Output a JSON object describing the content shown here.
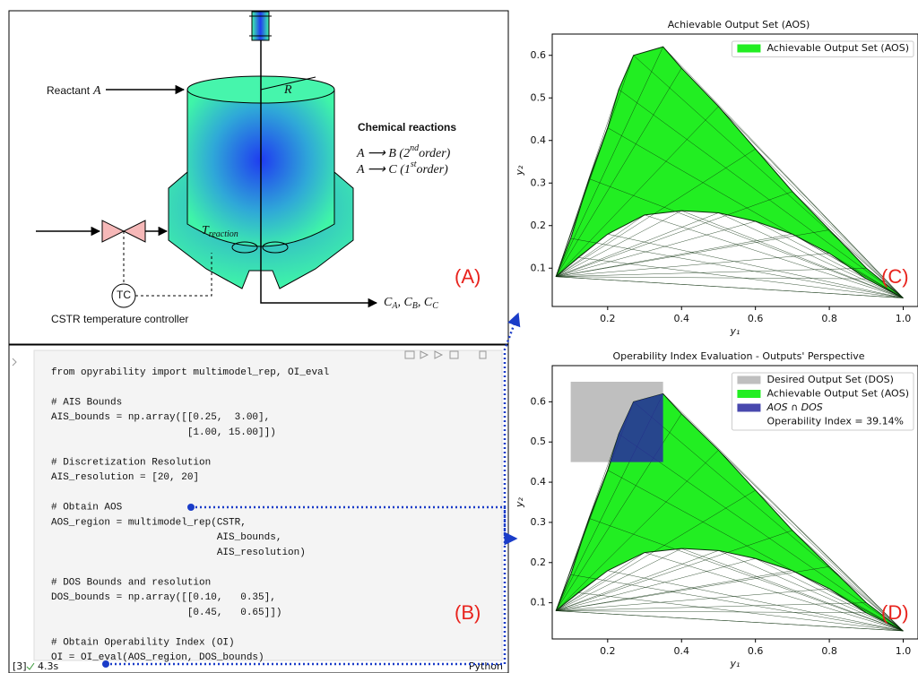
{
  "diagram": {
    "reactant": {
      "text": "Reactant",
      "symbol": "A"
    },
    "radius": "R",
    "reactions_title": "Chemical reactions",
    "reactions": [
      [
        "A ⟶ B (2",
        "nd",
        "order)"
      ],
      [
        "A ⟶ C (1",
        "st",
        "order)"
      ]
    ],
    "temperature": [
      "T",
      "reaction"
    ],
    "controller": "TC",
    "controller_caption": "CSTR temperature controller",
    "outputs": [
      "C",
      "A",
      ", C",
      "B",
      ", C",
      "C"
    ]
  },
  "code": {
    "blocks": [
      [
        "from opyrability import multimodel_rep, OI_eval"
      ],
      [
        "# AIS Bounds",
        "AIS_bounds = np.array([[0.25,  3.00],",
        "                       [1.00, 15.00]])"
      ],
      [
        "# Discretization Resolution",
        "AIS_resolution = [20, 20]"
      ],
      [
        "# Obtain AOS",
        "AOS_region = multimodel_rep(CSTR,",
        "                            AIS_bounds,",
        "                            AIS_resolution)"
      ],
      [
        "# DOS Bounds and resolution",
        "DOS_bounds = np.array([[0.10,   0.35],",
        "                       [0.45,   0.65]])"
      ],
      [
        "# Obtain Operability Index (OI)",
        "OI = OI_eval(AOS_region, DOS_bounds)"
      ]
    ],
    "execution_count": "[3]",
    "duration": "4.3s",
    "language": "Python"
  },
  "panel_labels": [
    "(A)",
    "(B)",
    "(C)",
    "(D)"
  ],
  "chart_data": [
    {
      "type": "area",
      "title": "Achievable Output Set (AOS)",
      "xlabel": "y₁",
      "ylabel": "y₂",
      "xlim": [
        0.05,
        1.04
      ],
      "ylim": [
        0.01,
        0.65
      ],
      "xticks": [
        0.2,
        0.4,
        0.6,
        0.8,
        {
          "value": 1,
          "label": "1.0"
        }
      ],
      "yticks": [
        0.1,
        0.2,
        0.3,
        0.4,
        0.5,
        0.6
      ],
      "legend": "upper right",
      "series": [
        {
          "name": "Achievable Output Set (AOS)",
          "color": "#22ee22",
          "edgecolor": "#0b2e0b",
          "alpha": 1,
          "x": [
            0.06,
            0.1,
            0.15,
            0.2,
            0.23,
            0.27,
            0.35,
            0.4,
            0.5,
            0.6,
            0.7,
            0.8,
            0.9,
            1.0,
            0.9,
            0.8,
            0.7,
            0.6,
            0.5,
            0.4,
            0.3,
            0.2,
            0.12
          ],
          "values": [
            0.08,
            0.17,
            0.31,
            0.43,
            0.52,
            0.6,
            0.62,
            0.57,
            0.48,
            0.38,
            0.28,
            0.19,
            0.1,
            0.03,
            0.075,
            0.135,
            0.18,
            0.21,
            0.23,
            0.235,
            0.225,
            0.18,
            0.125
          ]
        }
      ]
    },
    {
      "type": "area",
      "title": "Operability Index Evaluation - Outputs' Perspective",
      "xlabel": "y₁",
      "ylabel": "y₂",
      "xlim": [
        0.05,
        1.04
      ],
      "ylim": [
        0.01,
        0.69
      ],
      "xticks": [
        0.2,
        0.4,
        0.6,
        0.8,
        {
          "value": 1,
          "label": "1.0"
        }
      ],
      "yticks": [
        0.1,
        0.2,
        0.3,
        0.4,
        0.5,
        0.6
      ],
      "legend": "upper right",
      "annotation": "Operability Index = 39.14%",
      "series": [
        {
          "name": "Desired Output Set (DOS)",
          "color": "#808080",
          "alpha": 0.5,
          "x": [
            0.1,
            0.35,
            0.35,
            0.1
          ],
          "values": [
            0.45,
            0.45,
            0.65,
            0.65
          ]
        },
        {
          "name": "Achievable Output Set (AOS)",
          "color": "#22ee22",
          "edgecolor": "#0b2e0b",
          "alpha": 1,
          "x": [
            0.06,
            0.1,
            0.15,
            0.2,
            0.23,
            0.27,
            0.35,
            0.4,
            0.5,
            0.6,
            0.7,
            0.8,
            0.9,
            1.0,
            0.9,
            0.8,
            0.7,
            0.6,
            0.5,
            0.4,
            0.3,
            0.2,
            0.12
          ],
          "values": [
            0.08,
            0.17,
            0.31,
            0.43,
            0.52,
            0.6,
            0.62,
            0.57,
            0.48,
            0.38,
            0.28,
            0.19,
            0.1,
            0.03,
            0.075,
            0.135,
            0.18,
            0.21,
            0.23,
            0.235,
            0.225,
            0.18,
            0.125
          ]
        },
        {
          "name": "AOS ∩ DOS",
          "color": "#2828a0",
          "alpha": 0.85,
          "italic": true,
          "x": [
            0.207,
            0.35,
            0.35,
            0.27,
            0.23
          ],
          "values": [
            0.45,
            0.45,
            0.62,
            0.6,
            0.52
          ]
        }
      ]
    }
  ]
}
